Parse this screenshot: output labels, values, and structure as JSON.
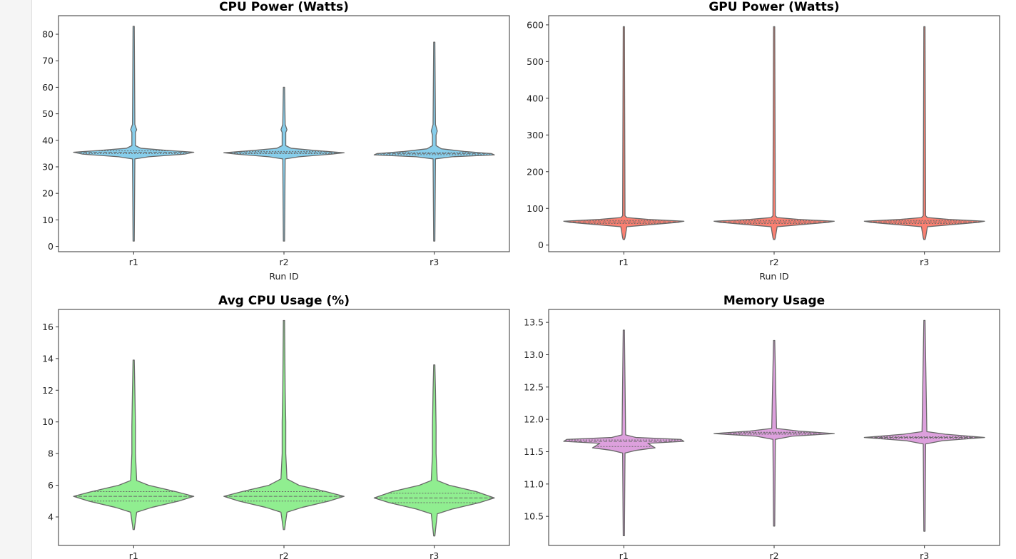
{
  "chart_data": [
    {
      "type": "violin",
      "title": "CPU Power (Watts)",
      "xlabel": "Run ID",
      "categories": [
        "r1",
        "r2",
        "r3"
      ],
      "ylim": [
        -2,
        87
      ],
      "yticks": [
        0,
        10,
        20,
        30,
        40,
        50,
        60,
        70,
        80
      ],
      "color": "#87ceeb",
      "grid": false,
      "violins": [
        {
          "min": 2,
          "max": 83,
          "q1": 35.0,
          "median": 35.5,
          "q3": 36.0,
          "density": [
            [
              2,
              0.01
            ],
            [
              33,
              0.02
            ],
            [
              33.8,
              0.25
            ],
            [
              34.8,
              0.85
            ],
            [
              35.5,
              1.0
            ],
            [
              36.2,
              0.55
            ],
            [
              37,
              0.12
            ],
            [
              38,
              0.03
            ],
            [
              43,
              0.03
            ],
            [
              44,
              0.05
            ],
            [
              46,
              0.02
            ],
            [
              83,
              0.01
            ]
          ]
        },
        {
          "min": 2,
          "max": 60,
          "q1": 35.0,
          "median": 35.3,
          "q3": 35.8,
          "density": [
            [
              2,
              0.01
            ],
            [
              33,
              0.02
            ],
            [
              33.8,
              0.25
            ],
            [
              34.8,
              0.8
            ],
            [
              35.3,
              1.0
            ],
            [
              36.2,
              0.5
            ],
            [
              37,
              0.12
            ],
            [
              38,
              0.03
            ],
            [
              43,
              0.03
            ],
            [
              44,
              0.05
            ],
            [
              46,
              0.02
            ],
            [
              60,
              0.01
            ]
          ]
        },
        {
          "min": 2,
          "max": 77,
          "q1": 34.6,
          "median": 35.0,
          "q3": 35.4,
          "density": [
            [
              2,
              0.01
            ],
            [
              33,
              0.02
            ],
            [
              33.8,
              0.3
            ],
            [
              34.5,
              1.0
            ],
            [
              35,
              0.95
            ],
            [
              35.8,
              0.5
            ],
            [
              36.8,
              0.12
            ],
            [
              38,
              0.03
            ],
            [
              42,
              0.03
            ],
            [
              43.5,
              0.05
            ],
            [
              46,
              0.02
            ],
            [
              77,
              0.01
            ]
          ]
        }
      ]
    },
    {
      "type": "violin",
      "title": "GPU Power (Watts)",
      "xlabel": "Run ID",
      "categories": [
        "r1",
        "r2",
        "r3"
      ],
      "ylim": [
        -18,
        625
      ],
      "yticks": [
        0,
        100,
        200,
        300,
        400,
        500,
        600
      ],
      "color": "#fa8072",
      "grid": false,
      "violins": [
        {
          "min": 15,
          "max": 595,
          "q1": 59,
          "median": 63,
          "q3": 67,
          "density": [
            [
              15,
              0.01
            ],
            [
              20,
              0.02
            ],
            [
              50,
              0.05
            ],
            [
              55,
              0.4
            ],
            [
              62,
              0.9
            ],
            [
              65,
              1.0
            ],
            [
              70,
              0.4
            ],
            [
              75,
              0.05
            ],
            [
              80,
              0.02
            ],
            [
              595,
              0.01
            ]
          ]
        },
        {
          "min": 15,
          "max": 595,
          "q1": 59,
          "median": 63,
          "q3": 67,
          "density": [
            [
              15,
              0.01
            ],
            [
              20,
              0.02
            ],
            [
              50,
              0.05
            ],
            [
              55,
              0.4
            ],
            [
              62,
              0.9
            ],
            [
              65,
              1.0
            ],
            [
              70,
              0.4
            ],
            [
              75,
              0.05
            ],
            [
              80,
              0.02
            ],
            [
              595,
              0.01
            ]
          ]
        },
        {
          "min": 15,
          "max": 595,
          "q1": 59,
          "median": 63,
          "q3": 67,
          "density": [
            [
              15,
              0.01
            ],
            [
              20,
              0.02
            ],
            [
              50,
              0.05
            ],
            [
              55,
              0.4
            ],
            [
              62,
              0.9
            ],
            [
              65,
              1.0
            ],
            [
              70,
              0.4
            ],
            [
              75,
              0.05
            ],
            [
              80,
              0.02
            ],
            [
              595,
              0.01
            ]
          ]
        }
      ]
    },
    {
      "type": "violin",
      "title": "Avg CPU Usage (%)",
      "xlabel": "",
      "categories": [
        "r1",
        "r2",
        "r3"
      ],
      "ylim": [
        2.2,
        17.1
      ],
      "yticks": [
        4,
        6,
        8,
        10,
        12,
        14,
        16
      ],
      "color": "#90ee90",
      "grid": false,
      "violins": [
        {
          "min": 3.2,
          "max": 13.9,
          "q1": 5.0,
          "median": 5.3,
          "q3": 5.6,
          "density": [
            [
              3.2,
              0.01
            ],
            [
              4.3,
              0.05
            ],
            [
              4.6,
              0.3
            ],
            [
              5.0,
              0.75
            ],
            [
              5.3,
              1.0
            ],
            [
              5.6,
              0.7
            ],
            [
              6.0,
              0.25
            ],
            [
              6.3,
              0.05
            ],
            [
              8,
              0.03
            ],
            [
              9.7,
              0.03
            ],
            [
              12,
              0.02
            ],
            [
              13.9,
              0.01
            ]
          ]
        },
        {
          "min": 3.2,
          "max": 16.4,
          "q1": 5.0,
          "median": 5.3,
          "q3": 5.6,
          "density": [
            [
              3.2,
              0.01
            ],
            [
              4.3,
              0.05
            ],
            [
              4.6,
              0.3
            ],
            [
              5.0,
              0.75
            ],
            [
              5.3,
              1.0
            ],
            [
              5.6,
              0.7
            ],
            [
              6.0,
              0.25
            ],
            [
              6.4,
              0.05
            ],
            [
              8,
              0.03
            ],
            [
              10,
              0.03
            ],
            [
              12,
              0.02
            ],
            [
              16.4,
              0.01
            ]
          ]
        },
        {
          "min": 2.8,
          "max": 13.6,
          "q1": 4.9,
          "median": 5.2,
          "q3": 5.5,
          "density": [
            [
              2.8,
              0.01
            ],
            [
              4.2,
              0.05
            ],
            [
              4.5,
              0.3
            ],
            [
              4.9,
              0.75
            ],
            [
              5.2,
              1.0
            ],
            [
              5.6,
              0.7
            ],
            [
              6.0,
              0.25
            ],
            [
              6.3,
              0.05
            ],
            [
              8,
              0.03
            ],
            [
              9.7,
              0.03
            ],
            [
              12,
              0.02
            ],
            [
              13.6,
              0.01
            ]
          ]
        }
      ]
    },
    {
      "type": "violin",
      "title": "Memory Usage",
      "xlabel": "",
      "categories": [
        "r1",
        "r2",
        "r3"
      ],
      "ylim": [
        10.05,
        13.7
      ],
      "yticks": [
        10.5,
        11.0,
        11.5,
        12.0,
        12.5,
        13.0,
        13.5
      ],
      "color": "#dda0dd",
      "grid": false,
      "violins": [
        {
          "min": 10.2,
          "max": 13.38,
          "q1": 11.58,
          "median": 11.66,
          "q3": 11.68,
          "density": [
            [
              10.2,
              0.01
            ],
            [
              11.48,
              0.02
            ],
            [
              11.52,
              0.2
            ],
            [
              11.56,
              0.52
            ],
            [
              11.6,
              0.45
            ],
            [
              11.63,
              0.4
            ],
            [
              11.66,
              1.0
            ],
            [
              11.69,
              0.95
            ],
            [
              11.72,
              0.2
            ],
            [
              11.76,
              0.03
            ],
            [
              13.38,
              0.01
            ]
          ]
        },
        {
          "min": 10.35,
          "max": 13.22,
          "q1": 11.77,
          "median": 11.79,
          "q3": 11.8,
          "density": [
            [
              10.35,
              0.01
            ],
            [
              11.69,
              0.02
            ],
            [
              11.74,
              0.3
            ],
            [
              11.78,
              1.0
            ],
            [
              11.82,
              0.4
            ],
            [
              11.86,
              0.04
            ],
            [
              13.22,
              0.01
            ]
          ]
        },
        {
          "min": 10.27,
          "max": 13.53,
          "q1": 11.71,
          "median": 11.72,
          "q3": 11.73,
          "density": [
            [
              10.27,
              0.01
            ],
            [
              11.62,
              0.02
            ],
            [
              11.67,
              0.3
            ],
            [
              11.72,
              1.0
            ],
            [
              11.77,
              0.35
            ],
            [
              11.81,
              0.04
            ],
            [
              13.53,
              0.01
            ]
          ]
        }
      ]
    }
  ]
}
